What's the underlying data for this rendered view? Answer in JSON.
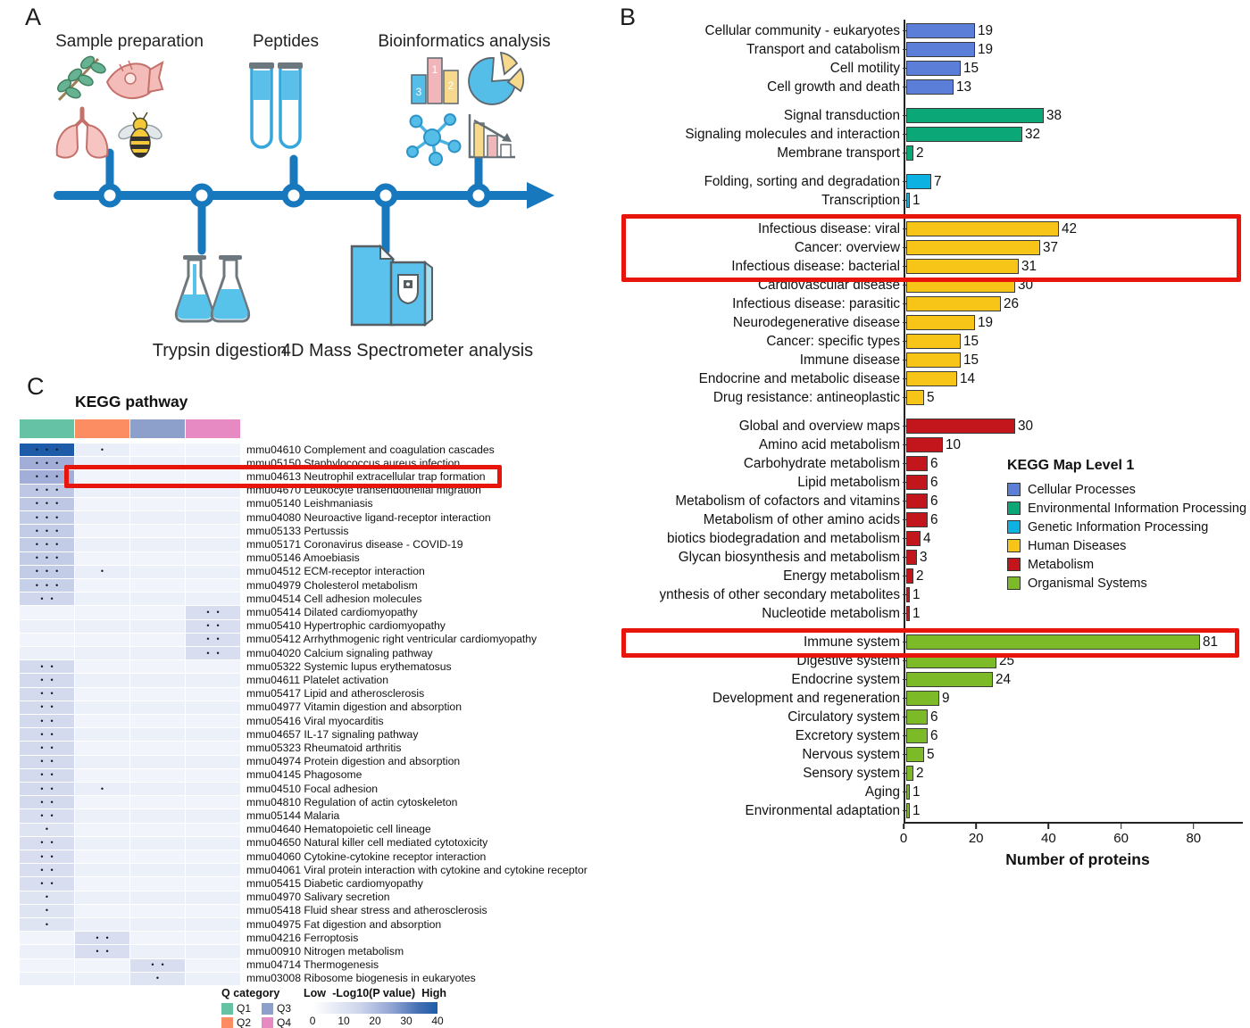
{
  "figure": {
    "panel_letters": {
      "a": "A",
      "b": "B",
      "c": "C"
    }
  },
  "panel_a": {
    "top_labels": {
      "sample_preparation": "Sample preparation",
      "peptides": "Peptides",
      "bioinformatics": "Bioinformatics analysis"
    },
    "bottom_labels": {
      "trypsin": "Trypsin digestion",
      "mass_spec": "4D Mass Spectrometer analysis"
    },
    "mini_bar_chart_numbers": [
      "3",
      "1",
      "2"
    ],
    "icons": [
      "plant-icon",
      "fish-icon",
      "lungs-icon",
      "bee-icon",
      "test-tubes-icon",
      "mini-bar-chart-icon",
      "pie-chart-icon",
      "molecule-network-icon",
      "declining-bar-chart-icon",
      "flasks-icon",
      "mass-spectrometer-icon",
      "timeline-arrow"
    ],
    "timeline_color": "#1878be"
  },
  "chart_data": [
    {
      "type": "bar",
      "panel": "B",
      "orientation": "horizontal",
      "title": "",
      "xlabel": "Number of proteins",
      "ylabel": "",
      "xlim": [
        0,
        88
      ],
      "xticks": [
        0,
        20,
        40,
        60,
        80
      ],
      "legend_title": "KEGG Map Level 1",
      "legend_position": "right-middle",
      "highlight_color": "#e8150d",
      "highlighted_rows": [
        "Infectious disease: viral",
        "Cancer: overview",
        "Infectious disease: bacterial",
        "Immune system"
      ],
      "groups": [
        {
          "name": "Cellular Processes",
          "color": "#5b7fd8",
          "items": [
            {
              "label": "Cellular community - eukaryotes",
              "value": 19
            },
            {
              "label": "Transport and catabolism",
              "value": 19
            },
            {
              "label": "Cell motility",
              "value": 15
            },
            {
              "label": "Cell growth and death",
              "value": 13
            }
          ]
        },
        {
          "name": "Environmental Information Processing",
          "color": "#0ba777",
          "items": [
            {
              "label": "Signal transduction",
              "value": 38
            },
            {
              "label": "Signaling molecules and interaction",
              "value": 32
            },
            {
              "label": "Membrane transport",
              "value": 2
            }
          ]
        },
        {
          "name": "Genetic Information Processing",
          "color": "#0cb3e2",
          "items": [
            {
              "label": "Folding, sorting and degradation",
              "value": 7
            },
            {
              "label": "Transcription",
              "value": 1
            }
          ]
        },
        {
          "name": "Human Diseases",
          "color": "#f7c517",
          "items": [
            {
              "label": "Infectious disease: viral",
              "value": 42
            },
            {
              "label": "Cancer: overview",
              "value": 37
            },
            {
              "label": "Infectious disease: bacterial",
              "value": 31
            },
            {
              "label": "Cardiovascular disease",
              "value": 30
            },
            {
              "label": "Infectious disease: parasitic",
              "value": 26
            },
            {
              "label": "Neurodegenerative disease",
              "value": 19
            },
            {
              "label": "Cancer: specific types",
              "value": 15
            },
            {
              "label": "Immune disease",
              "value": 15
            },
            {
              "label": "Endocrine and metabolic disease",
              "value": 14
            },
            {
              "label": "Drug resistance: antineoplastic",
              "value": 5
            }
          ]
        },
        {
          "name": "Metabolism",
          "color": "#c3161c",
          "items": [
            {
              "label": "Global and overview maps",
              "value": 30
            },
            {
              "label": "Amino acid metabolism",
              "value": 10
            },
            {
              "label": "Carbohydrate metabolism",
              "value": 6
            },
            {
              "label": "Lipid metabolism",
              "value": 6
            },
            {
              "label": "Metabolism of cofactors and vitamins",
              "value": 6
            },
            {
              "label": "Metabolism of other amino acids",
              "value": 6
            },
            {
              "label": "biotics biodegradation and metabolism",
              "value": 4
            },
            {
              "label": "Glycan biosynthesis and metabolism",
              "value": 3
            },
            {
              "label": "Energy metabolism",
              "value": 2
            },
            {
              "label": "ynthesis of other secondary metabolites",
              "value": 1
            },
            {
              "label": "Nucleotide metabolism",
              "value": 1
            }
          ]
        },
        {
          "name": "Organismal Systems",
          "color": "#7cbb27",
          "items": [
            {
              "label": "Immune system",
              "value": 81
            },
            {
              "label": "Digestive system",
              "value": 25
            },
            {
              "label": "Endocrine system",
              "value": 24
            },
            {
              "label": "Development and regeneration",
              "value": 9
            },
            {
              "label": "Circulatory system",
              "value": 6
            },
            {
              "label": "Excretory system",
              "value": 6
            },
            {
              "label": "Nervous system",
              "value": 5
            },
            {
              "label": "Sensory system",
              "value": 2
            },
            {
              "label": "Aging",
              "value": 1
            },
            {
              "label": "Environmental adaptation",
              "value": 1
            }
          ]
        }
      ]
    },
    {
      "type": "heatmap",
      "panel": "C",
      "title": "KEGG pathway",
      "columns": [
        "Q1",
        "Q2",
        "Q3",
        "Q4"
      ],
      "column_colors": [
        "#66c2a5",
        "#fc8d62",
        "#8da0cb",
        "#e78ac3"
      ],
      "highlight_color": "#e8150d",
      "highlighted_row": "mmu04613 Neutrophil extracellular trap formation",
      "legend": {
        "q_title": "Q category",
        "scale_low": "Low",
        "scale_title": "-Log10(P value)",
        "scale_high": "High",
        "scale_ticks": [
          0,
          10,
          20,
          30,
          40
        ],
        "scale_low_color": "#ffffff",
        "scale_high_color": "#1e5ca9"
      },
      "rows": [
        {
          "label": "mmu04610 Complement and coagulation cascades",
          "values": [
            40,
            2,
            0,
            0
          ],
          "dots": [
            3,
            1,
            0,
            0
          ]
        },
        {
          "label": "mmu05150 Staphylococcus aureus infection",
          "values": [
            20,
            0,
            0,
            0
          ],
          "dots": [
            3,
            0,
            0,
            0
          ]
        },
        {
          "label": "mmu04613 Neutrophil extracellular trap formation",
          "values": [
            20,
            0,
            0,
            0
          ],
          "dots": [
            3,
            0,
            0,
            0
          ]
        },
        {
          "label": "mmu04670 Leukocyte transendothelial migration",
          "values": [
            14,
            0,
            0,
            0
          ],
          "dots": [
            3,
            0,
            0,
            0
          ]
        },
        {
          "label": "mmu05140 Leishmaniasis",
          "values": [
            14,
            0,
            0,
            0
          ],
          "dots": [
            3,
            0,
            0,
            0
          ]
        },
        {
          "label": "mmu04080 Neuroactive ligand-receptor interaction",
          "values": [
            13,
            0,
            0,
            0
          ],
          "dots": [
            3,
            0,
            0,
            0
          ]
        },
        {
          "label": "mmu05133 Pertussis",
          "values": [
            13,
            0,
            0,
            0
          ],
          "dots": [
            3,
            0,
            0,
            0
          ]
        },
        {
          "label": "mmu05171 Coronavirus disease - COVID-19",
          "values": [
            13,
            0,
            0,
            0
          ],
          "dots": [
            3,
            0,
            0,
            0
          ]
        },
        {
          "label": "mmu05146 Amoebiasis",
          "values": [
            13,
            0,
            0,
            0
          ],
          "dots": [
            3,
            0,
            0,
            0
          ]
        },
        {
          "label": "mmu04512 ECM-receptor interaction",
          "values": [
            13,
            2,
            0,
            0
          ],
          "dots": [
            3,
            1,
            0,
            0
          ]
        },
        {
          "label": "mmu04979 Cholesterol metabolism",
          "values": [
            12,
            0,
            0,
            0
          ],
          "dots": [
            3,
            0,
            0,
            0
          ]
        },
        {
          "label": "mmu04514 Cell adhesion molecules",
          "values": [
            10,
            0,
            0,
            0
          ],
          "dots": [
            2,
            0,
            0,
            0
          ]
        },
        {
          "label": "mmu05414 Dilated cardiomyopathy",
          "values": [
            0,
            0,
            0,
            8
          ],
          "dots": [
            0,
            0,
            0,
            2
          ]
        },
        {
          "label": "mmu05410 Hypertrophic cardiomyopathy",
          "values": [
            0,
            0,
            0,
            8
          ],
          "dots": [
            0,
            0,
            0,
            2
          ]
        },
        {
          "label": "mmu05412 Arrhythmogenic right ventricular cardiomyopathy",
          "values": [
            0,
            0,
            0,
            8
          ],
          "dots": [
            0,
            0,
            0,
            2
          ]
        },
        {
          "label": "mmu04020 Calcium signaling pathway",
          "values": [
            0,
            0,
            0,
            8
          ],
          "dots": [
            0,
            0,
            0,
            2
          ]
        },
        {
          "label": "mmu05322 Systemic lupus erythematosus",
          "values": [
            9,
            0,
            0,
            0
          ],
          "dots": [
            2,
            0,
            0,
            0
          ]
        },
        {
          "label": "mmu04611 Platelet activation",
          "values": [
            9,
            0,
            0,
            0
          ],
          "dots": [
            2,
            0,
            0,
            0
          ]
        },
        {
          "label": "mmu05417 Lipid and atherosclerosis",
          "values": [
            9,
            0,
            0,
            0
          ],
          "dots": [
            2,
            0,
            0,
            0
          ]
        },
        {
          "label": "mmu04977 Vitamin digestion and absorption",
          "values": [
            9,
            0,
            0,
            0
          ],
          "dots": [
            2,
            0,
            0,
            0
          ]
        },
        {
          "label": "mmu05416 Viral myocarditis",
          "values": [
            9,
            0,
            0,
            0
          ],
          "dots": [
            2,
            0,
            0,
            0
          ]
        },
        {
          "label": "mmu04657 IL-17 signaling pathway",
          "values": [
            9,
            0,
            0,
            0
          ],
          "dots": [
            2,
            0,
            0,
            0
          ]
        },
        {
          "label": "mmu05323 Rheumatoid arthritis",
          "values": [
            9,
            0,
            0,
            0
          ],
          "dots": [
            2,
            0,
            0,
            0
          ]
        },
        {
          "label": "mmu04974 Protein digestion and absorption",
          "values": [
            9,
            0,
            0,
            0
          ],
          "dots": [
            2,
            0,
            0,
            0
          ]
        },
        {
          "label": "mmu04145 Phagosome",
          "values": [
            9,
            0,
            0,
            0
          ],
          "dots": [
            2,
            0,
            0,
            0
          ]
        },
        {
          "label": "mmu04510 Focal adhesion",
          "values": [
            9,
            2,
            0,
            0
          ],
          "dots": [
            2,
            1,
            0,
            0
          ]
        },
        {
          "label": "mmu04810 Regulation of actin cytoskeleton",
          "values": [
            9,
            0,
            0,
            0
          ],
          "dots": [
            2,
            0,
            0,
            0
          ]
        },
        {
          "label": "mmu05144 Malaria",
          "values": [
            8,
            0,
            0,
            0
          ],
          "dots": [
            2,
            0,
            0,
            0
          ]
        },
        {
          "label": "mmu04640 Hematopoietic cell lineage",
          "values": [
            6,
            0,
            0,
            0
          ],
          "dots": [
            1,
            0,
            0,
            0
          ]
        },
        {
          "label": "mmu04650 Natural killer cell mediated cytotoxicity",
          "values": [
            8,
            0,
            0,
            0
          ],
          "dots": [
            2,
            0,
            0,
            0
          ]
        },
        {
          "label": "mmu04060 Cytokine-cytokine receptor interaction",
          "values": [
            8,
            0,
            0,
            0
          ],
          "dots": [
            2,
            0,
            0,
            0
          ]
        },
        {
          "label": "mmu04061 Viral protein interaction with cytokine and cytokine receptor",
          "values": [
            8,
            0,
            0,
            0
          ],
          "dots": [
            2,
            0,
            0,
            0
          ]
        },
        {
          "label": "mmu05415 Diabetic cardiomyopathy",
          "values": [
            8,
            0,
            0,
            0
          ],
          "dots": [
            2,
            0,
            0,
            0
          ]
        },
        {
          "label": "mmu04970 Salivary secretion",
          "values": [
            6,
            0,
            0,
            0
          ],
          "dots": [
            1,
            0,
            0,
            0
          ]
        },
        {
          "label": "mmu05418 Fluid shear stress and atherosclerosis",
          "values": [
            6,
            0,
            0,
            0
          ],
          "dots": [
            1,
            0,
            0,
            0
          ]
        },
        {
          "label": "mmu04975 Fat digestion and absorption",
          "values": [
            6,
            0,
            0,
            0
          ],
          "dots": [
            1,
            0,
            0,
            0
          ]
        },
        {
          "label": "mmu04216 Ferroptosis",
          "values": [
            0,
            8,
            0,
            0
          ],
          "dots": [
            0,
            2,
            0,
            0
          ]
        },
        {
          "label": "mmu00910 Nitrogen metabolism",
          "values": [
            0,
            8,
            0,
            0
          ],
          "dots": [
            0,
            2,
            0,
            0
          ]
        },
        {
          "label": "mmu04714 Thermogenesis",
          "values": [
            0,
            0,
            8,
            0
          ],
          "dots": [
            0,
            0,
            2,
            0
          ]
        },
        {
          "label": "mmu03008 Ribosome biogenesis in eukaryotes",
          "values": [
            0,
            0,
            6,
            0
          ],
          "dots": [
            0,
            0,
            1,
            0
          ]
        }
      ]
    }
  ]
}
